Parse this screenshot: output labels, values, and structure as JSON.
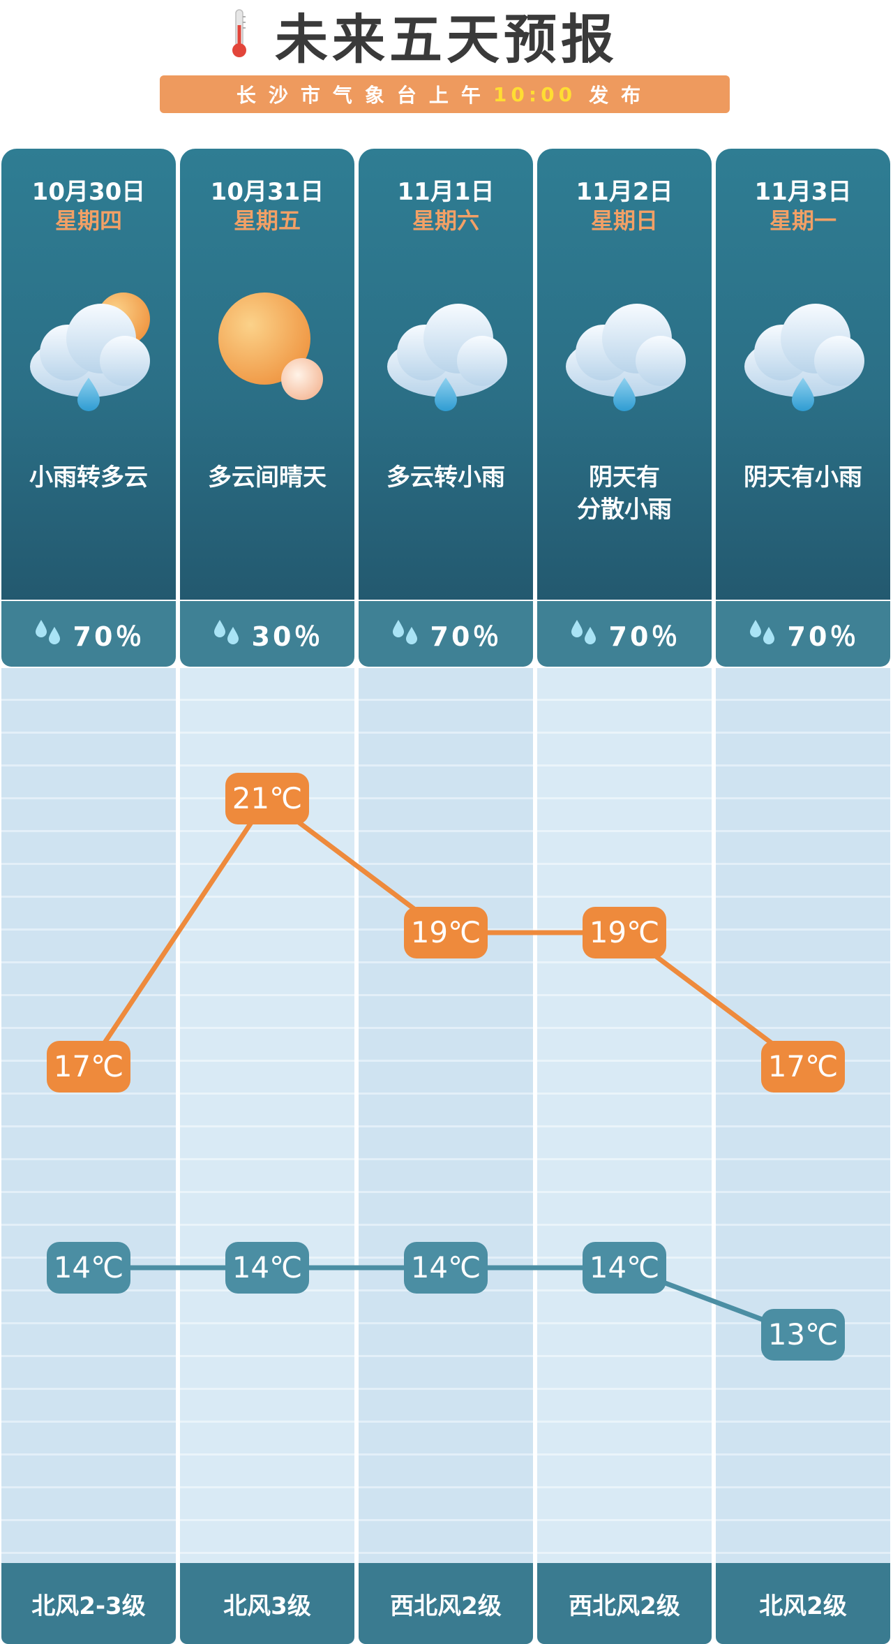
{
  "header": {
    "title": "未来五天预报",
    "subtitle_before": "长沙市气象台上午",
    "subtitle_time": "10:00",
    "subtitle_after": "发布"
  },
  "colors": {
    "high": "#ee8a3c",
    "low": "#4b8ea3",
    "head": "#2b6f86",
    "accent": "#f2a066"
  },
  "days": [
    {
      "date": "10月30日",
      "weekday": "星期四",
      "desc": "小雨转多云",
      "icon": "cloud-sun-rain-icon",
      "precip": "70％",
      "wind": "北风2-3级"
    },
    {
      "date": "10月31日",
      "weekday": "星期五",
      "desc": "多云间晴天",
      "icon": "sun-icon",
      "precip": "30％",
      "wind": "北风3级"
    },
    {
      "date": "11月1日",
      "weekday": "星期六",
      "desc": "多云转小雨",
      "icon": "cloud-rain-icon",
      "precip": "70％",
      "wind": "西北风2级"
    },
    {
      "date": "11月2日",
      "weekday": "星期日",
      "desc": "阴天有\n分散小雨",
      "icon": "cloud-rain-icon",
      "precip": "70％",
      "wind": "西北风2级"
    },
    {
      "date": "11月3日",
      "weekday": "星期一",
      "desc": "阴天有小雨",
      "icon": "cloud-rain-icon",
      "precip": "70％",
      "wind": "北风2级"
    }
  ],
  "chart_data": {
    "type": "line",
    "categories": [
      "10月30日",
      "10月31日",
      "11月1日",
      "11月2日",
      "11月3日"
    ],
    "series": [
      {
        "name": "high",
        "values": [
          17,
          21,
          19,
          19,
          17
        ],
        "labels": [
          "17℃",
          "21℃",
          "19℃",
          "19℃",
          "17℃"
        ]
      },
      {
        "name": "low",
        "values": [
          14,
          14,
          14,
          14,
          13
        ],
        "labels": [
          "14℃",
          "14℃",
          "14℃",
          "14℃",
          "13℃"
        ]
      }
    ]
  }
}
